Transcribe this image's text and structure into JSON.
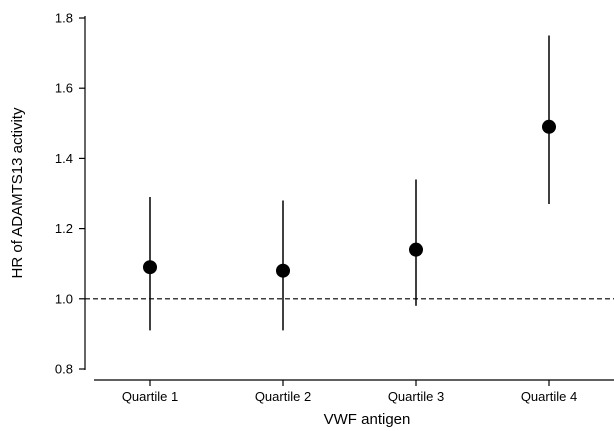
{
  "chart_data": {
    "type": "scatter",
    "title": "",
    "xlabel": "VWF antigen",
    "ylabel": "HR of ADAMTS13 activity",
    "categories": [
      "Quartile 1",
      "Quartile 2",
      "Quartile 3",
      "Quartile 4"
    ],
    "series": [
      {
        "estimates": [
          1.09,
          1.08,
          1.14,
          1.49
        ],
        "ci_lower": [
          0.91,
          0.91,
          0.98,
          1.27
        ],
        "ci_upper": [
          1.29,
          1.28,
          1.34,
          1.75
        ]
      }
    ],
    "ylim": [
      0.8,
      1.8
    ],
    "yticks": [
      0.8,
      1.0,
      1.2,
      1.4,
      1.6,
      1.8
    ],
    "ytick_labels": [
      "0.8",
      "1.0",
      "1.2",
      "1.4",
      "1.6",
      "1.8"
    ],
    "reference_line": 1.0,
    "reference_line_style": "dashed",
    "grid": false,
    "colors": {
      "marker": "#000000",
      "axis": "#000000"
    }
  }
}
